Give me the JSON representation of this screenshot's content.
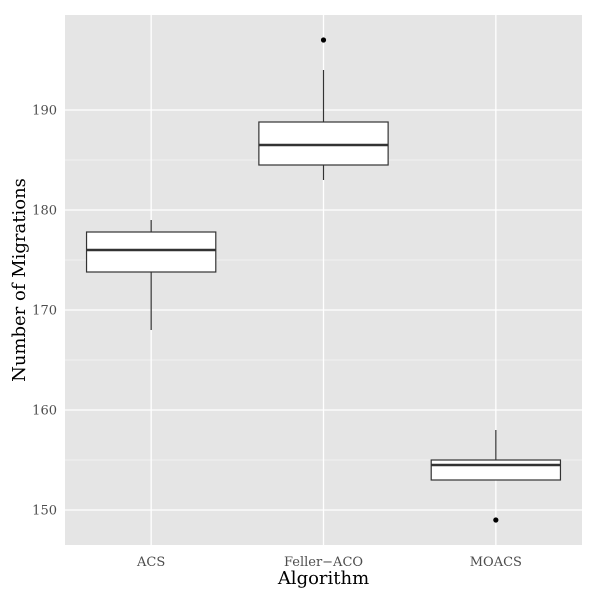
{
  "chart_data": {
    "type": "box",
    "xlabel": "Algorithm",
    "ylabel": "Number of Migrations",
    "ylim": [
      146.5,
      199.5
    ],
    "yticks": [
      150,
      160,
      170,
      180,
      190
    ],
    "grid": true,
    "categories": [
      "ACS",
      "Feller−ACO",
      "MOACS"
    ],
    "boxes": [
      {
        "category": "ACS",
        "whisker_low": 168,
        "q1": 173.8,
        "median": 176,
        "q3": 177.8,
        "whisker_high": 179,
        "outliers": []
      },
      {
        "category": "Feller−ACO",
        "whisker_low": 183,
        "q1": 184.5,
        "median": 186.5,
        "q3": 188.8,
        "whisker_high": 194,
        "outliers": [
          197
        ]
      },
      {
        "category": "MOACS",
        "whisker_low": 153,
        "q1": 153,
        "median": 154.5,
        "q3": 155,
        "whisker_high": 158,
        "outliers": [
          149
        ]
      }
    ],
    "colors": {
      "panel": "#e5e5e5",
      "grid": "#ffffff",
      "box_fill": "#ffffff",
      "box_stroke": "#333333",
      "outlier": "#000000"
    }
  }
}
